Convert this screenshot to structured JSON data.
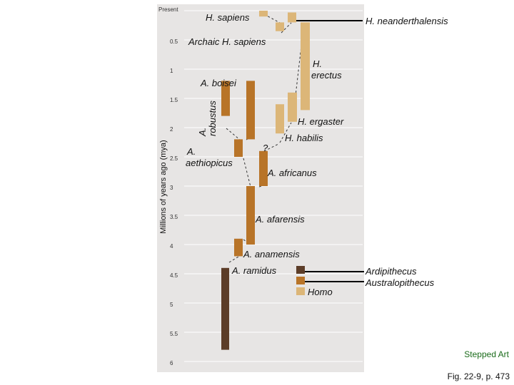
{
  "axis": {
    "title": "Millions of years ago (mya)",
    "min": 0,
    "max": 6,
    "ticks": [
      {
        "value": 0,
        "label": "Present"
      },
      {
        "value": 0.5,
        "label": "0.5"
      },
      {
        "value": 1,
        "label": "1"
      },
      {
        "value": 1.5,
        "label": "1.5"
      },
      {
        "value": 2,
        "label": "2"
      },
      {
        "value": 2.5,
        "label": "2.5"
      },
      {
        "value": 3,
        "label": "3"
      },
      {
        "value": 3.5,
        "label": "3.5"
      },
      {
        "value": 4,
        "label": "4"
      },
      {
        "value": 4.5,
        "label": "4.5"
      },
      {
        "value": 5,
        "label": "5"
      },
      {
        "value": 5.5,
        "label": "5.5"
      },
      {
        "value": 6,
        "label": "6"
      }
    ]
  },
  "colors": {
    "background": "#e7e5e4",
    "gridline": "#ffffff",
    "ardipithecus": "#5c3d28",
    "australopithecus": "#b87428",
    "homo": "#dcb678"
  },
  "species": [
    {
      "id": "ar-ramidus",
      "genus": "ardipithecus",
      "from": 4.4,
      "to": 5.8
    },
    {
      "id": "a-anamensis",
      "genus": "australopithecus",
      "from": 3.9,
      "to": 4.2
    },
    {
      "id": "a-afarensis",
      "genus": "australopithecus",
      "from": 3.0,
      "to": 4.0
    },
    {
      "id": "a-africanus",
      "genus": "australopithecus",
      "from": 2.4,
      "to": 3.0
    },
    {
      "id": "a-aethiopicus",
      "genus": "australopithecus",
      "from": 2.2,
      "to": 2.5
    },
    {
      "id": "a-robustus",
      "genus": "australopithecus",
      "from": 1.2,
      "to": 1.8
    },
    {
      "id": "a-boisei",
      "genus": "australopithecus",
      "from": 1.2,
      "to": 2.2
    },
    {
      "id": "h-habilis",
      "genus": "homo",
      "from": 1.6,
      "to": 2.1
    },
    {
      "id": "h-ergaster",
      "genus": "homo",
      "from": 1.4,
      "to": 1.9
    },
    {
      "id": "h-erectus",
      "genus": "homo",
      "from": 0.2,
      "to": 1.7
    },
    {
      "id": "archaic-h-sapiens",
      "genus": "homo",
      "from": 0.2,
      "to": 0.35
    },
    {
      "id": "h-neanderthalensis",
      "genus": "homo",
      "from": 0.03,
      "to": 0.2
    },
    {
      "id": "h-sapiens",
      "genus": "homo",
      "from": 0,
      "to": 0.1
    }
  ],
  "labels": {
    "h_sapiens": "H. sapiens",
    "h_neanderthalensis": "H. neanderthalensis",
    "archaic_h_sapiens": "Archaic H. sapiens",
    "h_erectus_1": "H.",
    "h_erectus_2": "erectus",
    "a_boisei": "A. boisei",
    "a_robustus_1": "A.",
    "a_robustus_2": "robustus",
    "h_ergaster": "H. ergaster",
    "h_habilis": "H. habilis",
    "question_mark": "?",
    "a_aethiopicus_1": "A.",
    "a_aethiopicus_2": "aethiopicus",
    "a_africanus": "A. africanus",
    "a_afarensis": "A. afarensis",
    "a_anamensis": "A. anamensis",
    "a_ramidus": "A. ramidus"
  },
  "legend": {
    "ardipithecus": "Ardipithecus",
    "australopithecus": "Australopithecus",
    "homo": "Homo"
  },
  "credits": {
    "stepped": "Stepped Art",
    "figure": "Fig. 22-9, p. 473"
  }
}
